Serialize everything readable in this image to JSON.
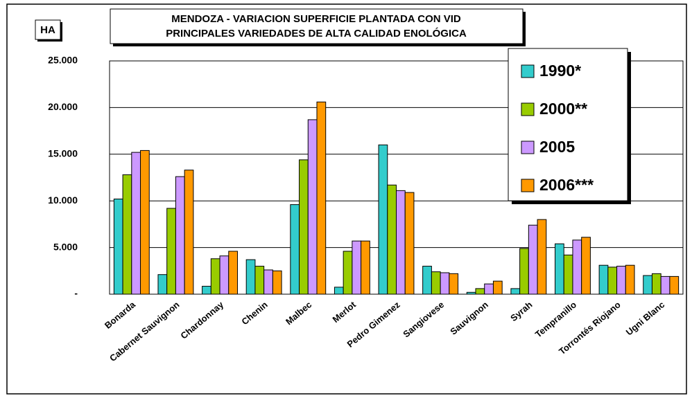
{
  "chart_data": {
    "type": "bar",
    "title": "MENDOZA - VARIACION SUPERFICIE  PLANTADA CON VID",
    "subtitle": "PRINCIPALES VARIEDADES DE ALTA CALIDAD ENOLÓGICA",
    "y_label": "HA",
    "categories": [
      "Bonarda",
      "Cabernet Sauvignon",
      "Chardonnay",
      "Chenin",
      "Malbec",
      "Merlot",
      "Pedro Gimenez",
      "Sangiovese",
      "Sauvignon",
      "Syrah",
      "Tempranillo",
      "Torrontés Riojano",
      "Ugni Blanc"
    ],
    "series": [
      {
        "name": "1990*",
        "color": "#33cccc",
        "values": [
          10200,
          2100,
          850,
          3700,
          9600,
          750,
          16000,
          3000,
          200,
          600,
          5400,
          3100,
          2000
        ]
      },
      {
        "name": "2000**",
        "color": "#99cc00",
        "values": [
          12800,
          9200,
          3800,
          3000,
          14400,
          4600,
          11700,
          2400,
          600,
          4900,
          4200,
          2900,
          2200
        ]
      },
      {
        "name": "2005",
        "color": "#cc99ff",
        "values": [
          15200,
          12600,
          4100,
          2600,
          18700,
          5700,
          11100,
          2300,
          1100,
          7400,
          5800,
          3000,
          1900
        ]
      },
      {
        "name": "2006***",
        "color": "#ff9900",
        "values": [
          15400,
          13300,
          4600,
          2500,
          20600,
          5700,
          10900,
          2200,
          1400,
          8000,
          6100,
          3100,
          1900
        ]
      }
    ],
    "ylim": [
      0,
      25000
    ],
    "yticks": [
      {
        "value": 0,
        "label": "-"
      },
      {
        "value": 5000,
        "label": "5.000"
      },
      {
        "value": 10000,
        "label": "10.000"
      },
      {
        "value": 15000,
        "label": "15.000"
      },
      {
        "value": 20000,
        "label": "20.000"
      },
      {
        "value": 25000,
        "label": "25.000"
      }
    ],
    "grid": true,
    "legend": "top-right"
  }
}
